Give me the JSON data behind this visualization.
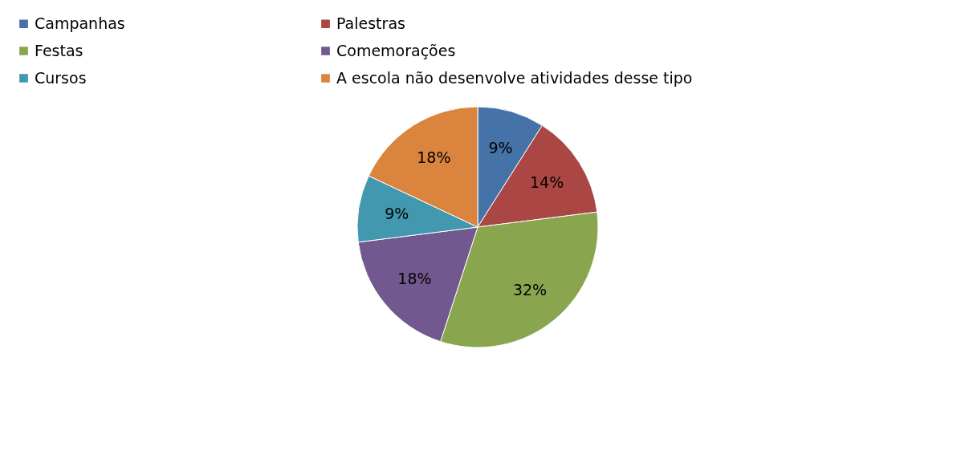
{
  "chart_data": {
    "type": "pie",
    "categories": [
      "Campanhas",
      "Palestras",
      "Festas",
      "Comemorações",
      "Cursos",
      "A escola não desenvolve atividades desse tipo"
    ],
    "values": [
      9,
      14,
      32,
      18,
      9,
      18
    ],
    "colors": [
      "#4572a7",
      "#aa4643",
      "#89a54e",
      "#71588f",
      "#4198af",
      "#db843d"
    ],
    "value_labels": [
      "9%",
      "14%",
      "32%",
      "18%",
      "9%",
      "18%"
    ],
    "legend": "top"
  }
}
